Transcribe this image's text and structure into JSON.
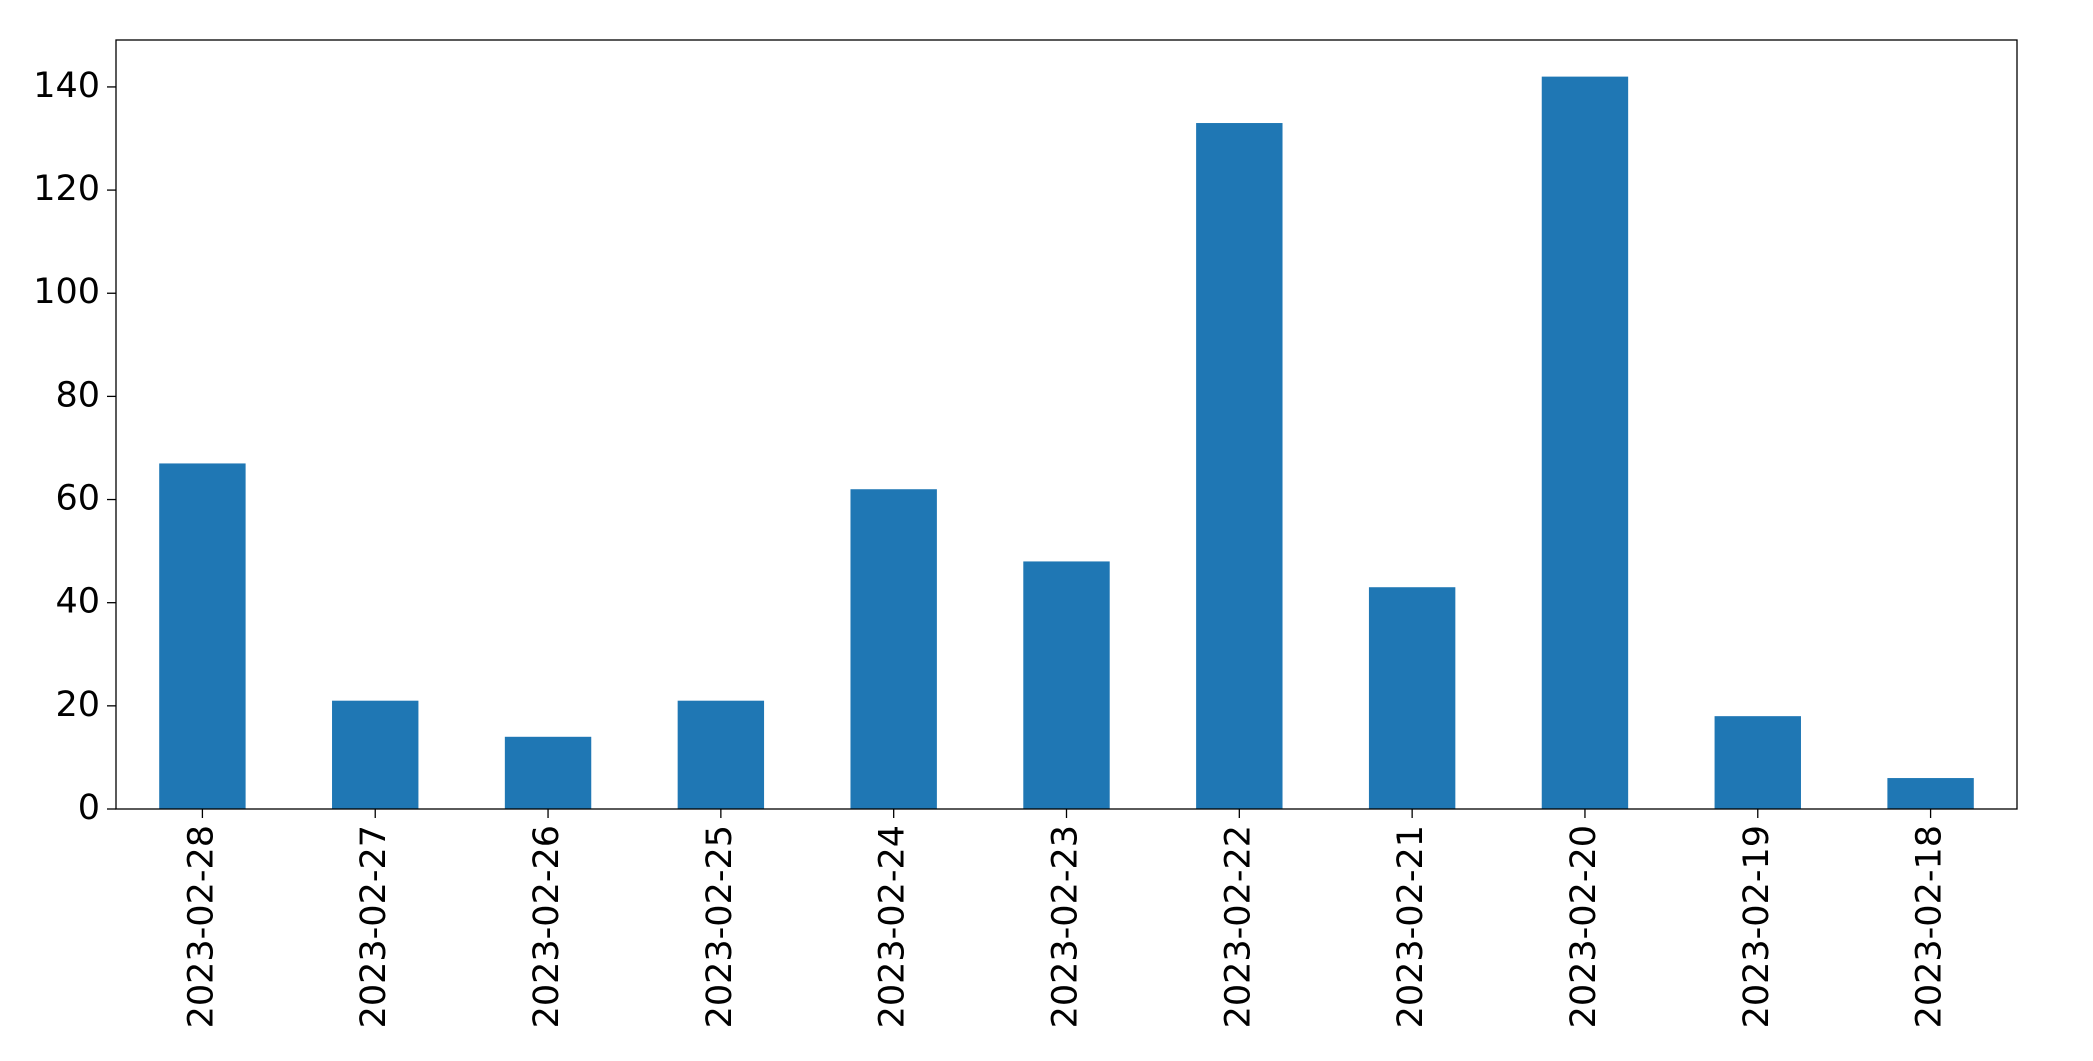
{
  "chart_data": {
    "type": "bar",
    "categories": [
      "2023-02-28",
      "2023-02-27",
      "2023-02-26",
      "2023-02-25",
      "2023-02-24",
      "2023-02-23",
      "2023-02-22",
      "2023-02-21",
      "2023-02-20",
      "2023-02-19",
      "2023-02-18"
    ],
    "values": [
      67,
      21,
      14,
      21,
      62,
      48,
      133,
      43,
      142,
      18,
      6
    ],
    "color": "#1f77b4",
    "ylim": [
      0,
      149.1
    ],
    "yticks": [
      0,
      20,
      40,
      60,
      80,
      100,
      120,
      140
    ],
    "grid": false
  }
}
